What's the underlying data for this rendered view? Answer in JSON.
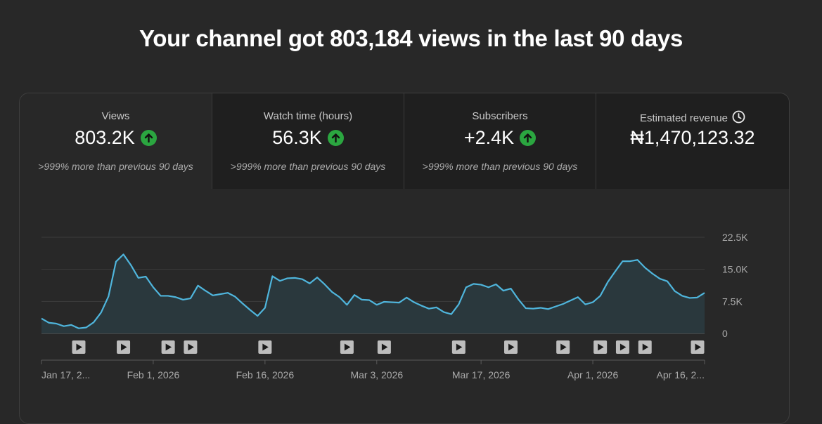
{
  "headline": "Your channel got 803,184 views in the last 90 days",
  "tabs": [
    {
      "label": "Views",
      "value": "803.2K",
      "trend": "up",
      "comparison": ">999% more than previous 90 days",
      "selected": true
    },
    {
      "label": "Watch time (hours)",
      "value": "56.3K",
      "trend": "up",
      "comparison": ">999% more than previous 90 days",
      "selected": false
    },
    {
      "label": "Subscribers",
      "value": "+2.4K",
      "trend": "up",
      "comparison": ">999% more than previous 90 days",
      "selected": false
    },
    {
      "label": "Estimated revenue",
      "value": "₦1,470,123.32",
      "icon": "clock-icon",
      "selected": false
    }
  ],
  "colors": {
    "line": "#4fb5dc",
    "area": "#2a383d",
    "trend_up": "#2ba640",
    "background": "#282828"
  },
  "chart_data": {
    "type": "area",
    "x_tick_labels": [
      "Jan 17, 2...",
      "Feb 1, 2026",
      "Feb 16, 2026",
      "Mar 3, 2026",
      "Mar 17, 2026",
      "Apr 1, 2026",
      "Apr 16, 2..."
    ],
    "x_tick_days": [
      0,
      15,
      30,
      45,
      59,
      74,
      89
    ],
    "y_ticks": [
      "22.5K",
      "15.0K",
      "7.5K",
      "0"
    ],
    "y_tick_values": [
      22500,
      15000,
      7500,
      0
    ],
    "ylim": [
      0,
      22500
    ],
    "grid": true,
    "series": [
      {
        "values": [
          3500,
          2500,
          2300,
          1700,
          2000,
          1200,
          1400,
          2600,
          4900,
          8700,
          16800,
          18500,
          16000,
          13000,
          13300,
          10800,
          8800,
          8800,
          8500,
          7900,
          8200,
          11200,
          10000,
          8900,
          9200,
          9500,
          8600,
          7000,
          5500,
          4100,
          6000,
          13400,
          12300,
          12900,
          13000,
          12700,
          11700,
          13100,
          11500,
          9700,
          8500,
          6700,
          9000,
          7900,
          7800,
          6700,
          7400,
          7300,
          7200,
          8400,
          7300,
          6500,
          5800,
          6100,
          5000,
          4500,
          6800,
          10800,
          11600,
          11400,
          10800,
          11500,
          10000,
          10500,
          8000,
          5900,
          5800,
          6000,
          5700,
          6300,
          6900,
          7700,
          8500,
          6800,
          7300,
          8800,
          12000,
          14500,
          16900,
          16900,
          17200,
          15400,
          14000,
          12800,
          12200,
          9900,
          8800,
          8300,
          8400,
          9500
        ]
      }
    ],
    "upload_markers_day": [
      5,
      11,
      17,
      20,
      30,
      41,
      46,
      56,
      63,
      70,
      75,
      78,
      81,
      90
    ]
  }
}
